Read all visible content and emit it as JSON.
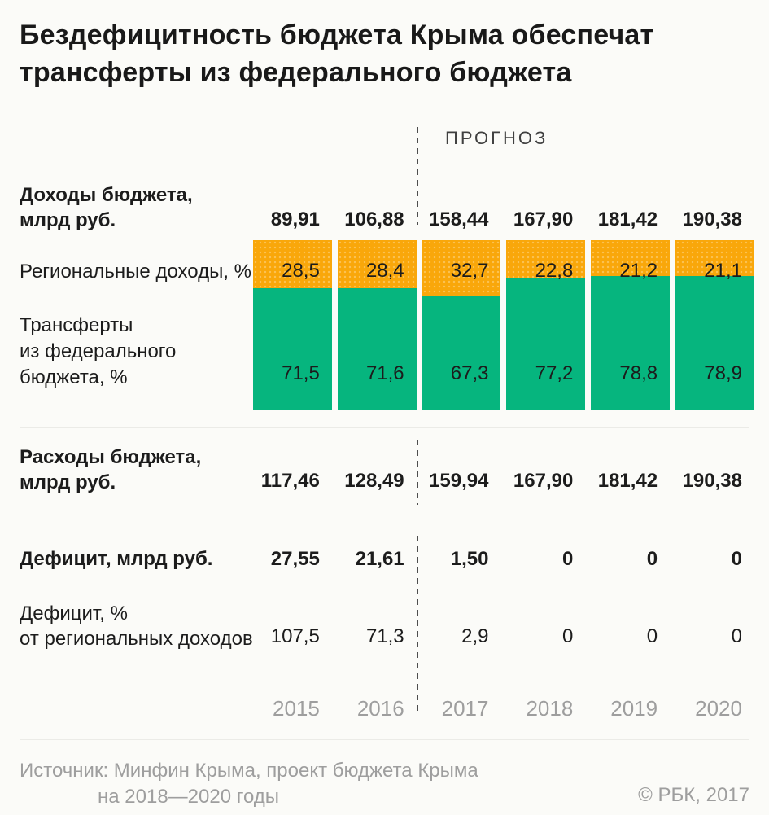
{
  "title": "Бездефицитность бюджета Крыма обеспечат трансферты из федерального бюджета",
  "forecast_label": "ПРОГНОЗ",
  "colors": {
    "background": "#fbfbf8",
    "regional_income_orange": "#f9a70a",
    "federal_transfers_green": "#06b57e",
    "text_dark": "#1c1c1c",
    "text_gray": "#9e9e9e",
    "dashed_line": "#4d4d4d",
    "divider": "#ebebe7"
  },
  "chart_data": {
    "type": "bar",
    "stacked": true,
    "orientation": "vertical",
    "categories": [
      "2015",
      "2016",
      "2017",
      "2018",
      "2019",
      "2020"
    ],
    "series": [
      {
        "name": "Региональные доходы, %",
        "color": "#f9a70a",
        "values": [
          28.5,
          28.4,
          32.7,
          22.8,
          21.2,
          21.1
        ]
      },
      {
        "name": "Трансферты из федерального бюджета, %",
        "color": "#06b57e",
        "values": [
          71.5,
          71.6,
          67.3,
          77.2,
          78.8,
          78.9
        ]
      }
    ],
    "ylim": [
      0,
      100
    ],
    "grid": false,
    "forecast_from_category": "2017",
    "title": "Бездефицитность бюджета Крыма обеспечат трансферты из федерального бюджета",
    "extra_rows": {
      "income_bln_rub": [
        89.91,
        106.88,
        158.44,
        167.9,
        181.42,
        190.38
      ],
      "expenses_bln_rub": [
        117.46,
        128.49,
        159.94,
        167.9,
        181.42,
        190.38
      ],
      "deficit_bln_rub": [
        27.55,
        21.61,
        1.5,
        0,
        0,
        0
      ],
      "deficit_pct_of_regional_income": [
        107.5,
        71.3,
        2.9,
        0,
        0,
        0
      ]
    }
  },
  "rows": {
    "income": {
      "label_line1": "Доходы бюджета,",
      "label_line2": "млрд руб.",
      "values": [
        "89,91",
        "106,88",
        "158,44",
        "167,90",
        "181,42",
        "190,38"
      ]
    },
    "regional": {
      "label": "Региональные доходы, %",
      "values": [
        "28,5",
        "28,4",
        "32,7",
        "22,8",
        "21,2",
        "21,1"
      ]
    },
    "transfers": {
      "label_line1": "Трансферты",
      "label_line2": "из федерального",
      "label_line3": "бюджета, %",
      "values": [
        "71,5",
        "71,6",
        "67,3",
        "77,2",
        "78,8",
        "78,9"
      ]
    },
    "expenses": {
      "label_line1": "Расходы бюджета,",
      "label_line2": "млрд руб.",
      "values": [
        "117,46",
        "128,49",
        "159,94",
        "167,90",
        "181,42",
        "190,38"
      ]
    },
    "deficit": {
      "label": "Дефицит, млрд руб.",
      "values": [
        "27,55",
        "21,61",
        "1,50",
        "0",
        "0",
        "0"
      ]
    },
    "deficit_pct": {
      "label_line1": "Дефицит, %",
      "label_line2": "от региональных доходов",
      "values": [
        "107,5",
        "71,3",
        "2,9",
        "0",
        "0",
        "0"
      ]
    }
  },
  "years": [
    "2015",
    "2016",
    "2017",
    "2018",
    "2019",
    "2020"
  ],
  "source_line1": "Источник: Минфин Крыма, проект бюджета Крыма",
  "source_line2": "на 2018—2020 годы",
  "copyright": "© РБК, 2017"
}
